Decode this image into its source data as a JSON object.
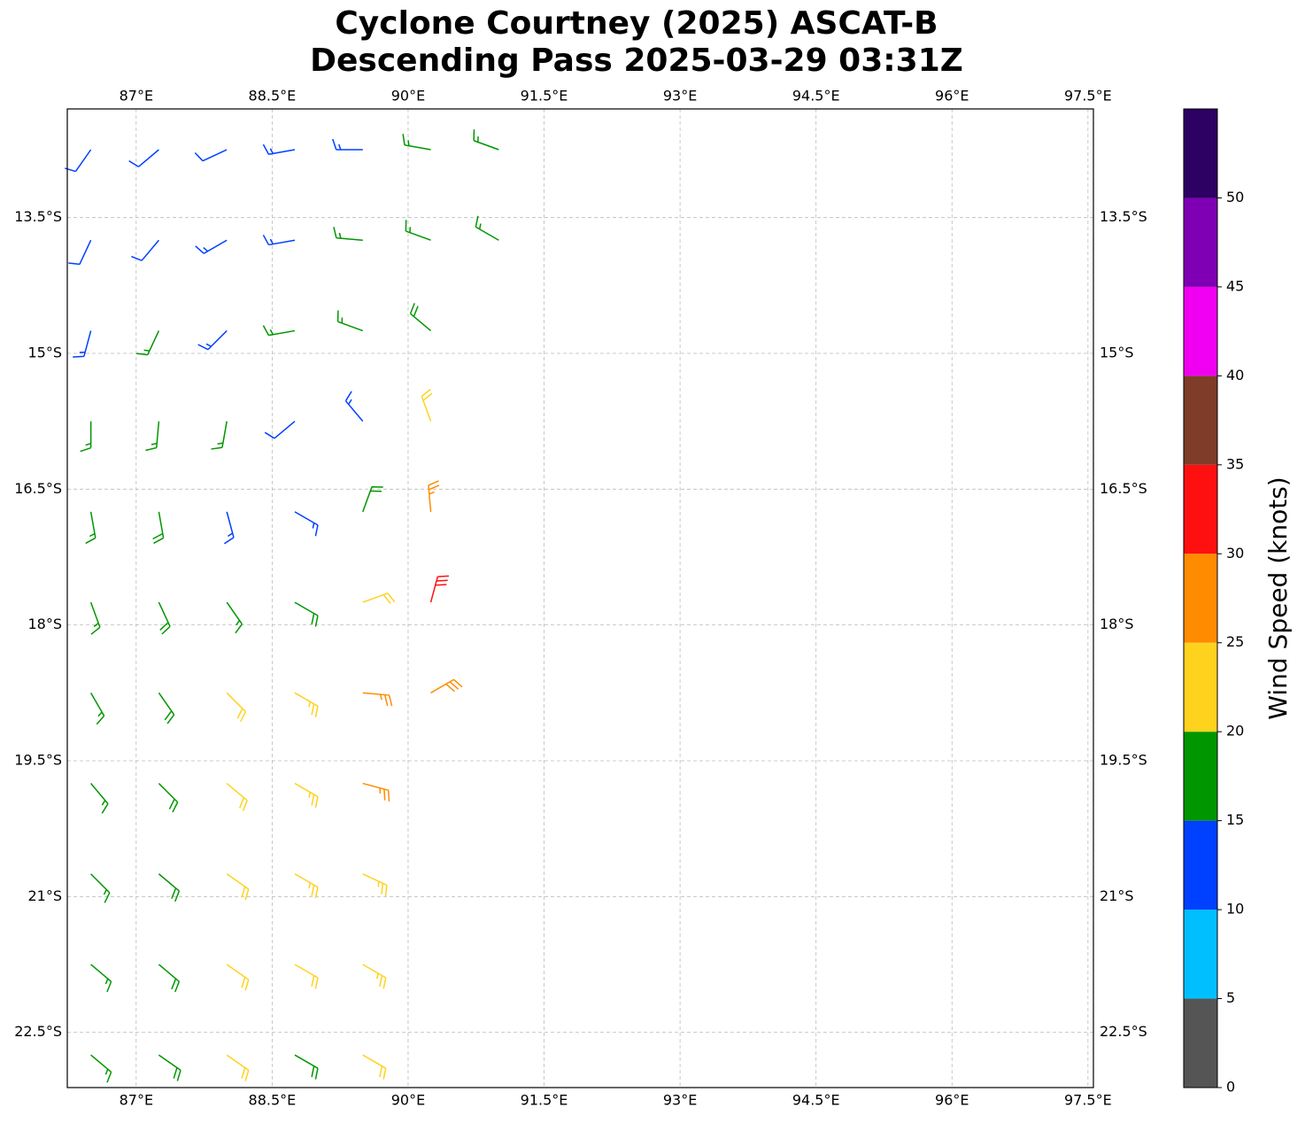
{
  "chart_data": {
    "type": "barbs",
    "title": "Cyclone Courtney (2025) ASCAT-B",
    "subtitle": "Descending Pass 2025-03-29 03:31Z",
    "xlim": [
      86.24,
      97.56
    ],
    "ylim": [
      -23.11,
      -12.3
    ],
    "xticks": [
      {
        "value": 87,
        "label": "87°E"
      },
      {
        "value": 88.5,
        "label": "88.5°E"
      },
      {
        "value": 90,
        "label": "90°E"
      },
      {
        "value": 91.5,
        "label": "91.5°E"
      },
      {
        "value": 93,
        "label": "93°E"
      },
      {
        "value": 94.5,
        "label": "94.5°E"
      },
      {
        "value": 96,
        "label": "96°E"
      },
      {
        "value": 97.5,
        "label": "97.5°E"
      }
    ],
    "yticks": [
      {
        "value": -13.5,
        "label": "13.5°S"
      },
      {
        "value": -15,
        "label": "15°S"
      },
      {
        "value": -16.5,
        "label": "16.5°S"
      },
      {
        "value": -18,
        "label": "18°S"
      },
      {
        "value": -19.5,
        "label": "19.5°S"
      },
      {
        "value": -21,
        "label": "21°S"
      },
      {
        "value": -22.5,
        "label": "22.5°S"
      }
    ],
    "grid": true,
    "barbs": {
      "lon": [
        86.5,
        87.25,
        88.0,
        88.75,
        89.5,
        90.25,
        91.0,
        86.5,
        87.25,
        88.0,
        88.75,
        89.5,
        90.25,
        91.0,
        86.5,
        87.25,
        88.0,
        88.75,
        89.5,
        90.25,
        86.5,
        87.25,
        88.0,
        88.75,
        89.5,
        90.25,
        86.5,
        87.25,
        88.0,
        88.75,
        89.5,
        90.25,
        86.5,
        87.25,
        88.0,
        88.75,
        89.5,
        90.25,
        86.5,
        87.25,
        88.0,
        88.75,
        89.5,
        90.25,
        86.5,
        87.25,
        88.0,
        88.75,
        89.5,
        86.5,
        87.25,
        88.0,
        88.75,
        89.5,
        86.5,
        87.25,
        88.0,
        88.75,
        89.5,
        86.5,
        87.25,
        88.0,
        88.75,
        89.5
      ],
      "lat": [
        -12.75,
        -12.75,
        -12.75,
        -12.75,
        -12.75,
        -12.75,
        -12.75,
        -13.75,
        -13.75,
        -13.75,
        -13.75,
        -13.75,
        -13.75,
        -13.75,
        -14.75,
        -14.75,
        -14.75,
        -14.75,
        -14.75,
        -14.75,
        -15.75,
        -15.75,
        -15.75,
        -15.75,
        -15.75,
        -15.75,
        -16.75,
        -16.75,
        -16.75,
        -16.75,
        -16.75,
        -16.75,
        -17.75,
        -17.75,
        -17.75,
        -17.75,
        -17.75,
        -17.75,
        -18.75,
        -18.75,
        -18.75,
        -18.75,
        -18.75,
        -18.75,
        -19.75,
        -19.75,
        -19.75,
        -19.75,
        -19.75,
        -20.75,
        -20.75,
        -20.75,
        -20.75,
        -20.75,
        -21.75,
        -21.75,
        -21.75,
        -21.75,
        -21.75,
        -22.75,
        -22.75,
        -22.75,
        -22.75,
        -22.75
      ],
      "speed": [
        12,
        12,
        12,
        13,
        14,
        16,
        17,
        11,
        12,
        13,
        14,
        16,
        17,
        17,
        13,
        16,
        14,
        16,
        17,
        18,
        16,
        17,
        16,
        12,
        13,
        21,
        17,
        18,
        14,
        13,
        18,
        27,
        17,
        18,
        17,
        19,
        22,
        31,
        17,
        18,
        21,
        23,
        26,
        28,
        16,
        18,
        21,
        23,
        26,
        17,
        18,
        21,
        23,
        24,
        16,
        19,
        21,
        22,
        23,
        17,
        18,
        21,
        19,
        22
      ],
      "direction": [
        215,
        230,
        245,
        260,
        270,
        280,
        290,
        205,
        220,
        240,
        260,
        275,
        290,
        300,
        195,
        205,
        225,
        260,
        290,
        310,
        180,
        185,
        190,
        230,
        320,
        340,
        170,
        170,
        165,
        120,
        20,
        355,
        160,
        155,
        145,
        120,
        70,
        15,
        150,
        145,
        135,
        120,
        95,
        60,
        140,
        135,
        130,
        120,
        105,
        135,
        130,
        125,
        120,
        115,
        130,
        130,
        125,
        120,
        120,
        130,
        125,
        125,
        120,
        120
      ]
    },
    "colorbar": {
      "label": "Wind Speed (knots)",
      "bounds": [
        0,
        5,
        10,
        15,
        20,
        25,
        30,
        35,
        40,
        45,
        50,
        55
      ],
      "colors": [
        "#555555",
        "#00bfff",
        "#0040ff",
        "#009600",
        "#ffd21e",
        "#ff8c00",
        "#ff1010",
        "#7f3c28",
        "#f000f0",
        "#7f00b4",
        "#2d0064"
      ],
      "ticks": [
        0,
        5,
        10,
        15,
        20,
        25,
        30,
        35,
        40,
        45,
        50
      ]
    }
  }
}
